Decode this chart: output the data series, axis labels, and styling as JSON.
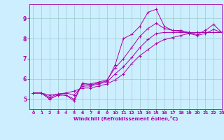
{
  "bg_color": "#cceeff",
  "line_color": "#aa00aa",
  "grid_color": "#99cccc",
  "xlabel": "Windchill (Refroidissement éolien,°C)",
  "xlim": [
    -0.5,
    23
  ],
  "ylim": [
    4.5,
    9.7
  ],
  "xticks": [
    0,
    1,
    2,
    3,
    4,
    5,
    6,
    7,
    8,
    9,
    10,
    11,
    12,
    13,
    14,
    15,
    16,
    17,
    18,
    19,
    20,
    21,
    22,
    23
  ],
  "yticks": [
    5,
    6,
    7,
    8,
    9
  ],
  "series": [
    [
      5.3,
      5.3,
      5.0,
      5.2,
      5.2,
      4.9,
      5.8,
      5.7,
      5.8,
      5.9,
      6.7,
      8.0,
      8.2,
      8.6,
      9.3,
      9.45,
      8.6,
      8.4,
      8.4,
      8.3,
      8.2,
      8.4,
      8.7,
      8.3
    ],
    [
      5.3,
      5.3,
      5.0,
      5.2,
      5.2,
      5.0,
      5.75,
      5.75,
      5.85,
      5.95,
      6.55,
      7.0,
      7.55,
      8.1,
      8.5,
      8.75,
      8.5,
      8.4,
      8.35,
      8.25,
      8.15,
      8.25,
      8.45,
      8.3
    ],
    [
      5.3,
      5.3,
      5.1,
      5.25,
      5.3,
      5.2,
      5.65,
      5.65,
      5.75,
      5.85,
      6.25,
      6.6,
      7.05,
      7.55,
      7.95,
      8.25,
      8.3,
      8.3,
      8.3,
      8.3,
      8.3,
      8.3,
      8.3,
      8.3
    ],
    [
      5.3,
      5.3,
      5.2,
      5.25,
      5.3,
      5.4,
      5.55,
      5.55,
      5.65,
      5.75,
      5.95,
      6.25,
      6.75,
      7.15,
      7.45,
      7.75,
      7.95,
      8.05,
      8.15,
      8.25,
      8.3,
      8.3,
      8.3,
      8.3
    ]
  ]
}
